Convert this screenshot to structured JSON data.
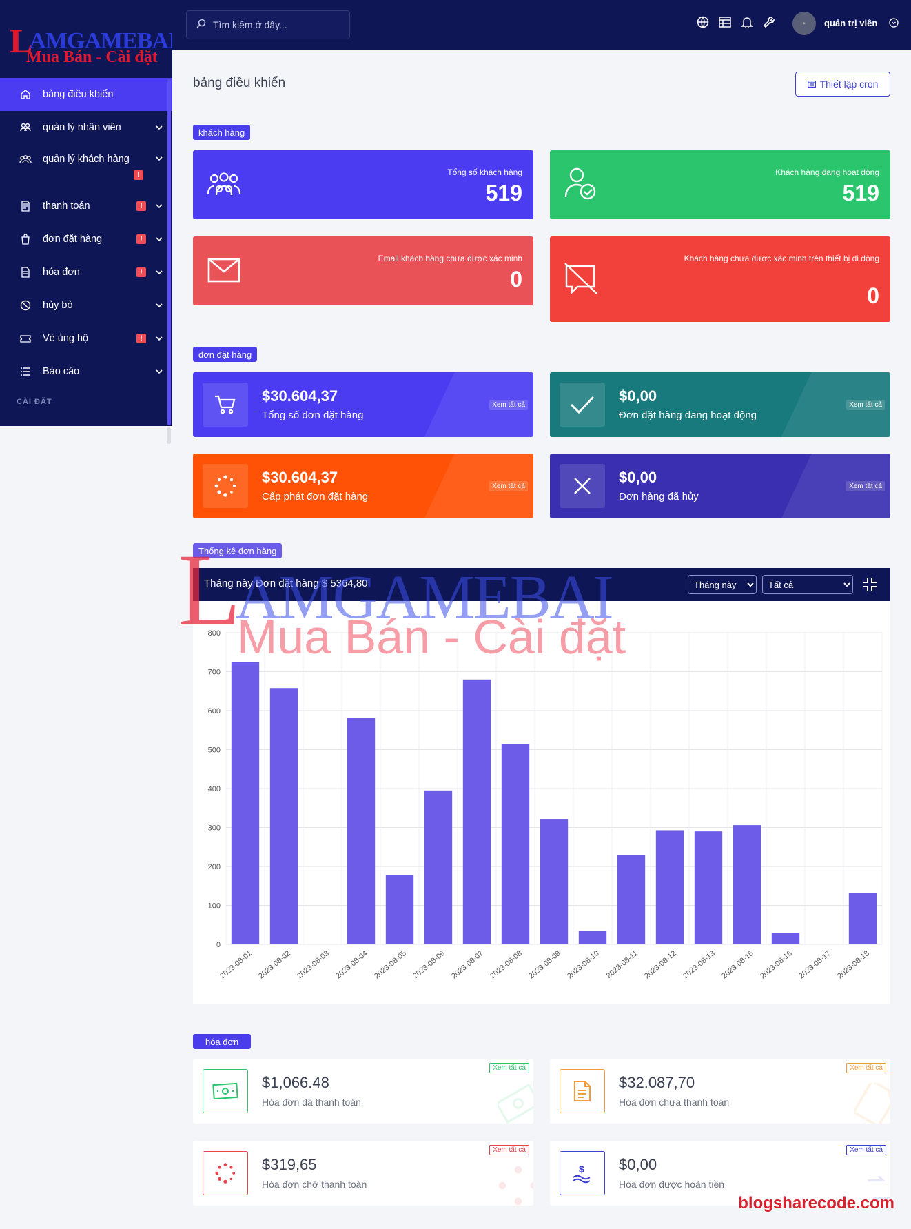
{
  "brand": {
    "logo_big": "AMGAMEBAI",
    "logo_big_first": "L",
    "logo_sub": "Mua Bán - Cài đặt"
  },
  "sidebar": {
    "items": [
      {
        "label": "bảng điều khiển",
        "icon": "home-icon",
        "active": true,
        "badge": "",
        "chevron": false
      },
      {
        "label": "quản lý nhân viên",
        "icon": "users-icon",
        "badge": "",
        "chevron": true
      },
      {
        "label": "quản lý khách hàng",
        "icon": "group-icon",
        "badge": "!",
        "chevron": true
      },
      {
        "label": "thanh toán",
        "icon": "receipt-icon",
        "badge": "!",
        "chevron": true
      },
      {
        "label": "đơn đặt hàng",
        "icon": "bag-icon",
        "badge": "!",
        "chevron": true
      },
      {
        "label": "hóa đơn",
        "icon": "document-icon",
        "badge": "!",
        "chevron": true
      },
      {
        "label": "hủy bỏ",
        "icon": "ban-icon",
        "badge": "",
        "chevron": true
      },
      {
        "label": "Vé ủng hộ",
        "icon": "ticket-icon",
        "badge": "!",
        "chevron": true
      },
      {
        "label": "Báo cáo",
        "icon": "list-icon",
        "badge": "",
        "chevron": true
      }
    ],
    "section": "CÀI ĐẶT"
  },
  "topbar": {
    "search_placeholder": "Tìm kiếm ở đây...",
    "user_name": "quản trị viên"
  },
  "page": {
    "title": "bảng điều khiển",
    "cron_button": "Thiết lập cron"
  },
  "customers": {
    "tag": "khách hàng",
    "cards": [
      {
        "label": "Tổng số khách hàng",
        "value": "519",
        "color": "#4b3cf2"
      },
      {
        "label": "Khách hàng đang hoạt động",
        "value": "519",
        "color": "#2bc56d"
      },
      {
        "label": "Email khách hàng chưa được xác minh",
        "value": "0",
        "color": "#e95358"
      },
      {
        "label": "Khách hàng chưa được xác minh trên thiết bị di động",
        "value": "0",
        "color": "#f2413a"
      }
    ]
  },
  "orders": {
    "tag": "đơn đặt hàng",
    "view_all": "Xem tất cả",
    "cards": [
      {
        "value": "$30.604,37",
        "label": "Tổng số đơn đặt hàng",
        "color": "#4b3cf2"
      },
      {
        "value": "$0,00",
        "label": "Đơn đặt hàng đang hoạt động",
        "color": "#187a7d"
      },
      {
        "value": "$30.604,37",
        "label": "Cấp phát đơn đặt hàng",
        "color": "#ff5207"
      },
      {
        "value": "$0,00",
        "label": "Đơn hàng đã hủy",
        "color": "#3a2fb0"
      }
    ]
  },
  "stats": {
    "tag": "Thống kê đơn hàng",
    "header_prefix": "Tháng này Đơn đặt hàng",
    "header_amount": "$ 5364,80",
    "period_options": [
      "Tháng này"
    ],
    "filter_options": [
      "Tất cả"
    ]
  },
  "chart_data": {
    "type": "bar",
    "categories": [
      "2023-08-01",
      "2023-08-02",
      "2023-08-03",
      "2023-08-04",
      "2023-08-05",
      "2023-08-06",
      "2023-08-07",
      "2023-08-08",
      "2023-08-09",
      "2023-08-10",
      "2023-08-11",
      "2023-08-12",
      "2023-08-13",
      "2023-08-15",
      "2023-08-16",
      "2023-08-17",
      "2023-08-18"
    ],
    "values": [
      725,
      658,
      0,
      582,
      178,
      395,
      680,
      515,
      322,
      35,
      230,
      293,
      290,
      306,
      30,
      0,
      131
    ],
    "ylim": [
      0,
      800
    ],
    "yticks": [
      0,
      100,
      200,
      300,
      400,
      500,
      600,
      700,
      800
    ],
    "color": "#6c5ce7",
    "grid": true
  },
  "invoices": {
    "tag": "hóa đơn",
    "view_all": "Xem tất cả",
    "cards": [
      {
        "value": "$1,066.48",
        "label": "Hóa đơn đã thanh toán",
        "color": "#2bc56d",
        "icon": "cash-icon"
      },
      {
        "value": "$32.087,70",
        "label": "Hóa đơn chưa thanh toán",
        "color": "#f39a3a",
        "icon": "invoice-icon"
      },
      {
        "value": "$319,65",
        "label": "Hóa đơn chờ thanh toán",
        "color": "#e9414a",
        "icon": "spinner-icon"
      },
      {
        "value": "$0,00",
        "label": "Hóa đơn được hoàn tiền",
        "color": "#3b3fd6",
        "icon": "refund-icon"
      }
    ]
  },
  "watermark": {
    "big_first": "L",
    "big": "AMGAMEBAI",
    "sub": "Mua Bán - Cài đặt",
    "footer": "blogsharecode.com"
  }
}
